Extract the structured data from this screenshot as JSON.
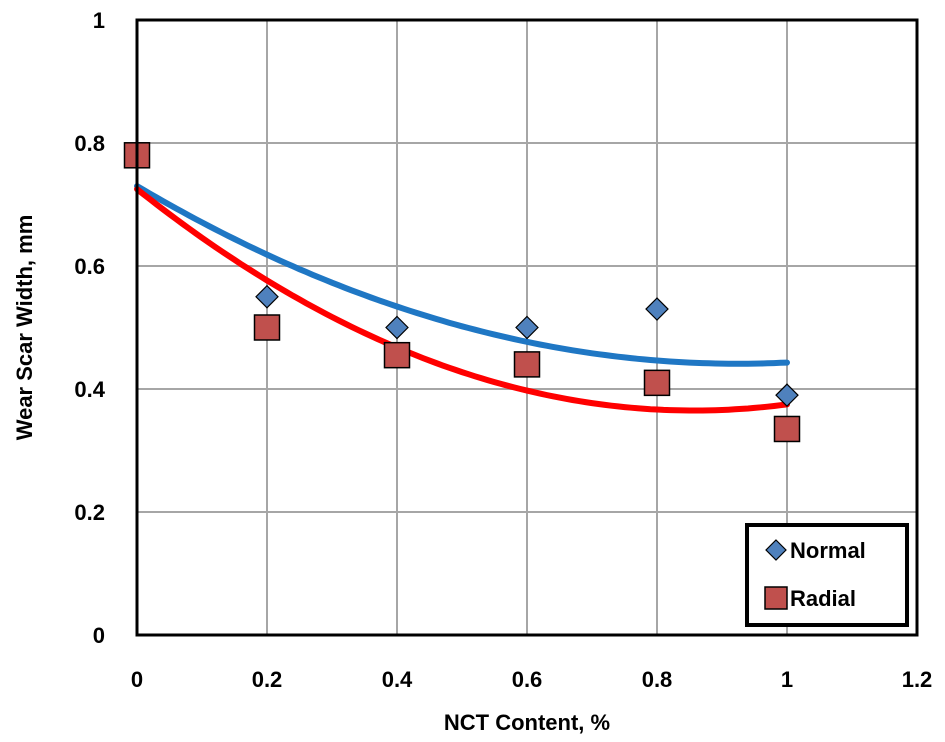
{
  "chart_data": {
    "type": "scatter",
    "xlabel": "NCT Content, %",
    "ylabel": "Wear Scar Width, mm",
    "xlim": [
      0,
      1.2
    ],
    "ylim": [
      0,
      1
    ],
    "x_ticks": [
      "0",
      "0.2",
      "0.4",
      "0.6",
      "0.8",
      "1",
      "1.2"
    ],
    "y_ticks": [
      "0",
      "0.2",
      "0.4",
      "0.6",
      "0.8",
      "1"
    ],
    "grid": true,
    "legend_position": "bottom-right",
    "series": [
      {
        "name": "Normal",
        "marker": "diamond",
        "color": "#4f81bd",
        "trend_color": "#1f77c4",
        "x": [
          0,
          0.2,
          0.4,
          0.6,
          0.8,
          1.0
        ],
        "y": [
          0.78,
          0.55,
          0.5,
          0.5,
          0.53,
          0.39
        ],
        "trendline": {
          "type": "polynomial",
          "order": 2,
          "coefficients": [
            0.73,
            -0.625,
            0.338
          ]
        }
      },
      {
        "name": "Radial",
        "marker": "square",
        "color": "#c0504d",
        "trend_color": "#ff0000",
        "x": [
          0,
          0.2,
          0.4,
          0.6,
          0.8,
          1.0
        ],
        "y": [
          0.78,
          0.5,
          0.455,
          0.44,
          0.41,
          0.335
        ],
        "trendline": {
          "type": "polynomial",
          "order": 2,
          "coefficients": [
            0.725,
            -0.84,
            0.49
          ]
        }
      }
    ]
  }
}
